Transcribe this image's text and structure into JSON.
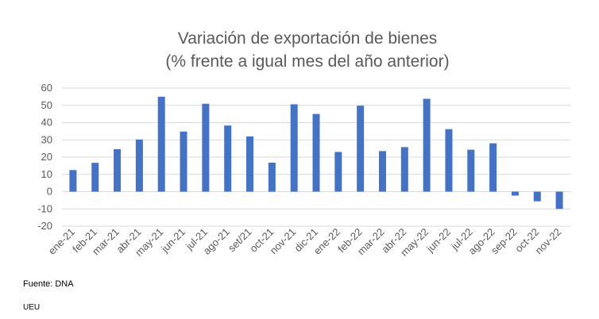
{
  "chart_data": {
    "type": "bar",
    "title_line1": "Variación de exportación de bienes",
    "title_line2": "(% frente a igual mes del año anterior)",
    "categories": [
      "ene-21",
      "feb-21",
      "mar-21",
      "abr-21",
      "may-21",
      "jun-21",
      "jul-21",
      "ago-21",
      "set/21",
      "oct-21",
      "nov-21",
      "dic-21",
      "ene-22",
      "feb-22",
      "mar-22",
      "abr-22",
      "may-22",
      "jun-22",
      "jul-22",
      "ago-22",
      "sep-22",
      "oct-22",
      "nov-22"
    ],
    "values": [
      12.5,
      16.7,
      24.6,
      30.2,
      55.0,
      34.8,
      50.9,
      38.3,
      32.0,
      16.8,
      50.6,
      45.0,
      23.0,
      49.8,
      23.5,
      25.8,
      53.8,
      36.2,
      24.3,
      28.0,
      -2.3,
      -5.6,
      -10.0
    ],
    "ylim": [
      -20,
      60
    ],
    "yticks": [
      -20,
      -10,
      0,
      10,
      20,
      30,
      40,
      50,
      60
    ],
    "grid": true,
    "bar_color": "#4472c4",
    "grid_color": "#d9d9d9"
  },
  "source_note": "Fuente: DNA",
  "footer_code": "UEU"
}
